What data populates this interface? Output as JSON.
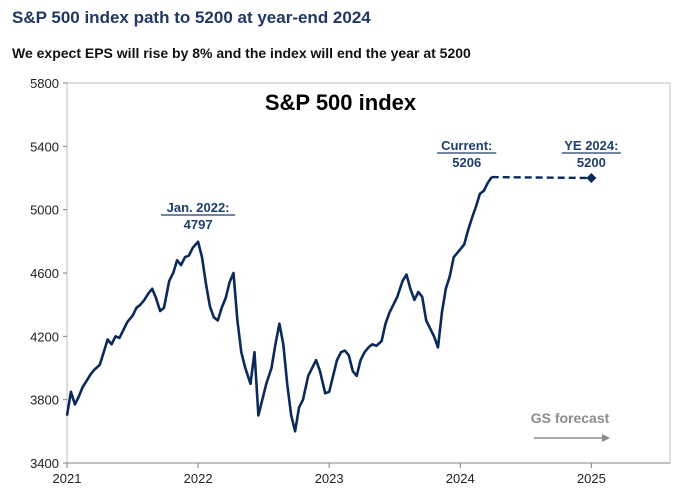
{
  "header": {
    "title": "S&P 500 index path to 5200 at year-end 2024",
    "subtitle": "We expect EPS will rise by 8% and the index will end the year at 5200"
  },
  "colors": {
    "title": "#1f3864",
    "series": "#0b2a5b",
    "annotation": "#1f3f6e",
    "forecast_label": "#8c8c8c",
    "plot_border": "#bfbfbf"
  },
  "chart_data": {
    "type": "line",
    "title": "S&P 500 index",
    "xlabel": "",
    "ylabel": "",
    "xlim": [
      2021,
      2025.6
    ],
    "ylim": [
      3400,
      5800
    ],
    "x_ticks": [
      "2021",
      "2022",
      "2023",
      "2024",
      "2025"
    ],
    "y_ticks": [
      "5800",
      "5400",
      "5000",
      "4600",
      "4200",
      "3800",
      "3400"
    ],
    "grid": false,
    "series": [
      {
        "name": "",
        "style": "solid",
        "points": [
          [
            2021.0,
            3700
          ],
          [
            2021.03,
            3850
          ],
          [
            2021.06,
            3770
          ],
          [
            2021.09,
            3820
          ],
          [
            2021.12,
            3880
          ],
          [
            2021.15,
            3920
          ],
          [
            2021.18,
            3960
          ],
          [
            2021.21,
            3990
          ],
          [
            2021.25,
            4020
          ],
          [
            2021.28,
            4100
          ],
          [
            2021.31,
            4180
          ],
          [
            2021.34,
            4150
          ],
          [
            2021.37,
            4200
          ],
          [
            2021.4,
            4190
          ],
          [
            2021.43,
            4240
          ],
          [
            2021.46,
            4290
          ],
          [
            2021.5,
            4330
          ],
          [
            2021.53,
            4380
          ],
          [
            2021.56,
            4400
          ],
          [
            2021.59,
            4430
          ],
          [
            2021.62,
            4470
          ],
          [
            2021.65,
            4500
          ],
          [
            2021.68,
            4440
          ],
          [
            2021.71,
            4360
          ],
          [
            2021.74,
            4380
          ],
          [
            2021.78,
            4550
          ],
          [
            2021.81,
            4600
          ],
          [
            2021.84,
            4680
          ],
          [
            2021.87,
            4650
          ],
          [
            2021.9,
            4700
          ],
          [
            2021.93,
            4710
          ],
          [
            2021.96,
            4760
          ],
          [
            2022.0,
            4797
          ],
          [
            2022.03,
            4700
          ],
          [
            2022.06,
            4530
          ],
          [
            2022.09,
            4390
          ],
          [
            2022.12,
            4320
          ],
          [
            2022.15,
            4300
          ],
          [
            2022.18,
            4380
          ],
          [
            2022.21,
            4440
          ],
          [
            2022.24,
            4540
          ],
          [
            2022.27,
            4600
          ],
          [
            2022.3,
            4300
          ],
          [
            2022.33,
            4100
          ],
          [
            2022.36,
            4000
          ],
          [
            2022.4,
            3900
          ],
          [
            2022.43,
            4100
          ],
          [
            2022.46,
            3700
          ],
          [
            2022.49,
            3800
          ],
          [
            2022.52,
            3900
          ],
          [
            2022.56,
            4000
          ],
          [
            2022.59,
            4150
          ],
          [
            2022.62,
            4280
          ],
          [
            2022.65,
            4150
          ],
          [
            2022.68,
            3900
          ],
          [
            2022.71,
            3700
          ],
          [
            2022.74,
            3600
          ],
          [
            2022.77,
            3750
          ],
          [
            2022.8,
            3800
          ],
          [
            2022.84,
            3950
          ],
          [
            2022.87,
            4000
          ],
          [
            2022.9,
            4050
          ],
          [
            2022.93,
            3980
          ],
          [
            2022.97,
            3840
          ],
          [
            2023.0,
            3850
          ],
          [
            2023.03,
            3950
          ],
          [
            2023.06,
            4050
          ],
          [
            2023.09,
            4100
          ],
          [
            2023.12,
            4110
          ],
          [
            2023.15,
            4080
          ],
          [
            2023.18,
            3980
          ],
          [
            2023.21,
            3950
          ],
          [
            2023.24,
            4050
          ],
          [
            2023.27,
            4100
          ],
          [
            2023.3,
            4130
          ],
          [
            2023.33,
            4150
          ],
          [
            2023.36,
            4140
          ],
          [
            2023.4,
            4170
          ],
          [
            2023.43,
            4280
          ],
          [
            2023.46,
            4350
          ],
          [
            2023.49,
            4400
          ],
          [
            2023.52,
            4450
          ],
          [
            2023.56,
            4550
          ],
          [
            2023.59,
            4590
          ],
          [
            2023.62,
            4500
          ],
          [
            2023.65,
            4430
          ],
          [
            2023.68,
            4480
          ],
          [
            2023.71,
            4450
          ],
          [
            2023.74,
            4300
          ],
          [
            2023.77,
            4250
          ],
          [
            2023.8,
            4200
          ],
          [
            2023.83,
            4130
          ],
          [
            2023.86,
            4350
          ],
          [
            2023.89,
            4500
          ],
          [
            2023.92,
            4580
          ],
          [
            2023.95,
            4700
          ],
          [
            2024.0,
            4750
          ],
          [
            2024.03,
            4780
          ],
          [
            2024.06,
            4870
          ],
          [
            2024.09,
            4950
          ],
          [
            2024.12,
            5020
          ],
          [
            2024.15,
            5100
          ],
          [
            2024.18,
            5120
          ],
          [
            2024.21,
            5170
          ],
          [
            2024.24,
            5206
          ]
        ]
      },
      {
        "name": "GS forecast",
        "style": "dashed",
        "points": [
          [
            2024.24,
            5206
          ],
          [
            2025.0,
            5200
          ]
        ]
      }
    ],
    "annotations": [
      {
        "text": [
          "Jan. 2022:",
          "4797"
        ],
        "x": 2022.0,
        "y": 4797
      },
      {
        "text": [
          "Current:",
          "5206"
        ],
        "x": 2024.24,
        "y": 5206
      },
      {
        "text": [
          "YE 2024:",
          "5200"
        ],
        "x": 2025.0,
        "y": 5200
      }
    ],
    "forecast_label": "GS forecast"
  }
}
